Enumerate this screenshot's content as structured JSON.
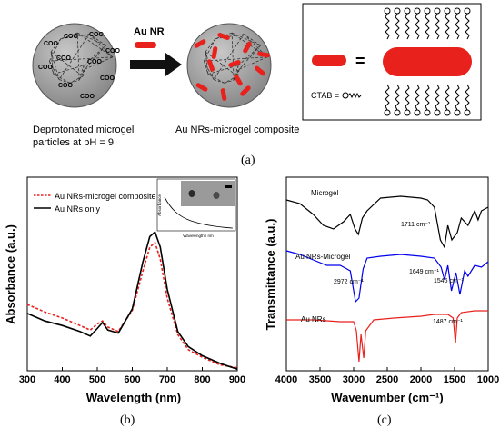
{
  "schematic": {
    "particle_label_1": "Deprotonated microgel",
    "particle_label_2": "particles at pH = 9",
    "composite_label": "Au NRs-microgel composite",
    "arrow_label": "Au NR",
    "coo_text": "COO",
    "equals": "=",
    "ctab_label": "CTAB =",
    "panel_label": "(a)",
    "colors": {
      "nanorod": "#e8211d",
      "particle": "#a9a9a9"
    }
  },
  "chart_data": [
    {
      "type": "line",
      "panel_label": "(b)",
      "xlabel": "Wavelength (nm)",
      "ylabel": "Absorbance (a.u.)",
      "xlim": [
        300,
        900
      ],
      "xticks": [
        300,
        400,
        500,
        600,
        700,
        800,
        900
      ],
      "legend_position": "top-left",
      "series": [
        {
          "name": "Au NRs-microgel composite",
          "color": "#e8211d",
          "style": "dashed",
          "x": [
            300,
            350,
            400,
            450,
            480,
            500,
            515,
            530,
            560,
            600,
            630,
            650,
            665,
            680,
            700,
            730,
            760,
            800,
            850,
            900
          ],
          "y": [
            0.44,
            0.39,
            0.35,
            0.3,
            0.27,
            0.31,
            0.33,
            0.29,
            0.26,
            0.4,
            0.66,
            0.82,
            0.85,
            0.74,
            0.48,
            0.24,
            0.14,
            0.09,
            0.04,
            0.02
          ]
        },
        {
          "name": "Au NRs only",
          "color": "#000000",
          "style": "solid",
          "x": [
            300,
            350,
            400,
            450,
            480,
            500,
            515,
            530,
            560,
            600,
            630,
            650,
            665,
            680,
            700,
            730,
            760,
            800,
            850,
            900
          ],
          "y": [
            0.38,
            0.33,
            0.3,
            0.26,
            0.23,
            0.28,
            0.32,
            0.27,
            0.25,
            0.41,
            0.72,
            0.89,
            0.92,
            0.82,
            0.54,
            0.26,
            0.16,
            0.1,
            0.05,
            0.01
          ]
        }
      ],
      "inset": {
        "xlabel": "Wavelength / nm",
        "ylabel": "Absorbance"
      }
    },
    {
      "type": "line",
      "panel_label": "(c)",
      "xlabel": "Wavenumber (cm⁻¹)",
      "ylabel": "Transmittance (a.u.)",
      "xlim": [
        4000,
        1000
      ],
      "xticks": [
        4000,
        3500,
        3000,
        2500,
        2000,
        1500,
        1000
      ],
      "series": [
        {
          "name": "Microgel",
          "color": "#000000",
          "x": [
            4000,
            3800,
            3600,
            3450,
            3300,
            3150,
            3050,
            2980,
            2930,
            2870,
            2800,
            2600,
            2300,
            2000,
            1900,
            1800,
            1711,
            1650,
            1600,
            1540,
            1460,
            1400,
            1300,
            1200,
            1150,
            1100,
            1000
          ],
          "y": [
            0.94,
            0.92,
            0.86,
            0.8,
            0.78,
            0.82,
            0.86,
            0.78,
            0.75,
            0.84,
            0.88,
            0.95,
            0.96,
            0.95,
            0.94,
            0.9,
            0.72,
            0.68,
            0.8,
            0.72,
            0.76,
            0.84,
            0.8,
            0.88,
            0.83,
            0.88,
            0.9
          ]
        },
        {
          "name": "Au NRs-Microgel",
          "color": "#0000ee",
          "x": [
            4000,
            3800,
            3600,
            3400,
            3200,
            3050,
            2972,
            2920,
            2860,
            2800,
            2600,
            2300,
            2000,
            1800,
            1700,
            1649,
            1600,
            1546,
            1480,
            1420,
            1350,
            1300,
            1200,
            1100,
            1000
          ],
          "y": [
            0.66,
            0.64,
            0.61,
            0.58,
            0.58,
            0.55,
            0.38,
            0.4,
            0.56,
            0.62,
            0.63,
            0.64,
            0.63,
            0.62,
            0.57,
            0.5,
            0.58,
            0.44,
            0.54,
            0.42,
            0.55,
            0.52,
            0.58,
            0.57,
            0.6
          ]
        },
        {
          "name": "Au NRs",
          "color": "#e8211d",
          "x": [
            4000,
            3600,
            3200,
            3000,
            2960,
            2920,
            2890,
            2850,
            2820,
            2700,
            2400,
            2000,
            1800,
            1600,
            1520,
            1487,
            1460,
            1400,
            1200,
            1000
          ],
          "y": [
            0.28,
            0.28,
            0.27,
            0.27,
            0.22,
            0.05,
            0.2,
            0.07,
            0.22,
            0.28,
            0.29,
            0.3,
            0.31,
            0.31,
            0.29,
            0.15,
            0.29,
            0.32,
            0.33,
            0.33
          ]
        }
      ],
      "annotations": [
        "1711 cm⁻¹",
        "2972 cm⁻¹",
        "1649 cm⁻¹",
        "1546 cm⁻¹",
        "1487 cm⁻¹"
      ]
    }
  ]
}
